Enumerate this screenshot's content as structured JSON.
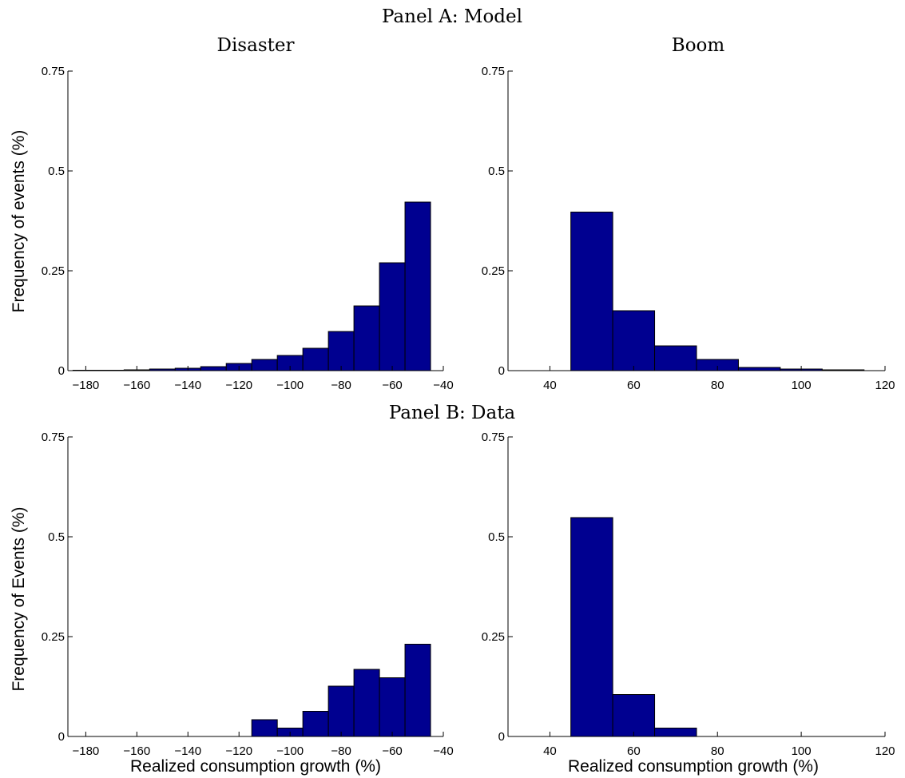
{
  "figure": {
    "panel_a_title": "Panel A: Model",
    "panel_b_title": "Panel B: Data",
    "col_disaster": "Disaster",
    "col_boom": "Boom"
  },
  "colors": {
    "bar_fill": "#000090",
    "bar_edge": "#000000",
    "axis": "#000000"
  },
  "chart_data": [
    {
      "id": "model-disaster",
      "type": "bar",
      "title": "Disaster",
      "xlabel": "",
      "ylabel": "Frequency of events (%)",
      "xlim": [
        -187,
        -40
      ],
      "ylim": [
        0,
        0.75
      ],
      "xticks": [
        -180,
        -160,
        -140,
        -120,
        -100,
        -80,
        -60,
        -40
      ],
      "xticklabels": [
        "−180",
        "−160",
        "−140",
        "−120",
        "−100",
        "−80",
        "−60",
        "−40"
      ],
      "yticks": [
        0,
        0.25,
        0.5,
        0.75
      ],
      "yticklabels": [
        "0",
        "0.25",
        "0.5",
        "0.75"
      ],
      "bin_width": 10,
      "bins": [
        -180,
        -170,
        -160,
        -150,
        -140,
        -130,
        -120,
        -110,
        -100,
        -90,
        -80,
        -70,
        -60,
        -50
      ],
      "values": [
        0.001,
        0.001,
        0.002,
        0.004,
        0.006,
        0.01,
        0.018,
        0.028,
        0.038,
        0.056,
        0.098,
        0.162,
        0.27,
        0.422
      ]
    },
    {
      "id": "model-boom",
      "type": "bar",
      "title": "Boom",
      "xlabel": "",
      "ylabel": "",
      "xlim": [
        30,
        120
      ],
      "ylim": [
        0,
        0.75
      ],
      "xticks": [
        40,
        60,
        80,
        100,
        120
      ],
      "xticklabels": [
        "40",
        "60",
        "80",
        "100",
        "120"
      ],
      "yticks": [
        0,
        0.25,
        0.5,
        0.75
      ],
      "yticklabels": [
        "0",
        "0.25",
        "0.5",
        "0.75"
      ],
      "bin_width": 10,
      "bins": [
        50,
        60,
        70,
        80,
        90,
        100,
        110
      ],
      "values": [
        0.397,
        0.15,
        0.062,
        0.028,
        0.008,
        0.004,
        0.002
      ]
    },
    {
      "id": "data-disaster",
      "type": "bar",
      "title": "",
      "xlabel": "Realized consumption growth (%)",
      "ylabel": "Frequency of Events (%)",
      "xlim": [
        -187,
        -40
      ],
      "ylim": [
        0,
        0.75
      ],
      "xticks": [
        -180,
        -160,
        -140,
        -120,
        -100,
        -80,
        -60,
        -40
      ],
      "xticklabels": [
        "−180",
        "−160",
        "−140",
        "−120",
        "−100",
        "−80",
        "−60",
        "−40"
      ],
      "yticks": [
        0,
        0.25,
        0.5,
        0.75
      ],
      "yticklabels": [
        "0",
        "0.25",
        "0.5",
        "0.75"
      ],
      "bin_width": 10,
      "bins": [
        -110,
        -100,
        -90,
        -80,
        -70,
        -60,
        -50
      ],
      "values": [
        0.042,
        0.021,
        0.063,
        0.126,
        0.168,
        0.147,
        0.231
      ]
    },
    {
      "id": "data-boom",
      "type": "bar",
      "title": "",
      "xlabel": "Realized consumption growth (%)",
      "ylabel": "",
      "xlim": [
        30,
        120
      ],
      "ylim": [
        0,
        0.75
      ],
      "xticks": [
        40,
        60,
        80,
        100,
        120
      ],
      "xticklabels": [
        "40",
        "60",
        "80",
        "100",
        "120"
      ],
      "yticks": [
        0,
        0.25,
        0.5,
        0.75
      ],
      "yticklabels": [
        "0",
        "0.25",
        "0.5",
        "0.75"
      ],
      "bin_width": 10,
      "bins": [
        50,
        60,
        70
      ],
      "values": [
        0.548,
        0.105,
        0.021
      ]
    }
  ]
}
